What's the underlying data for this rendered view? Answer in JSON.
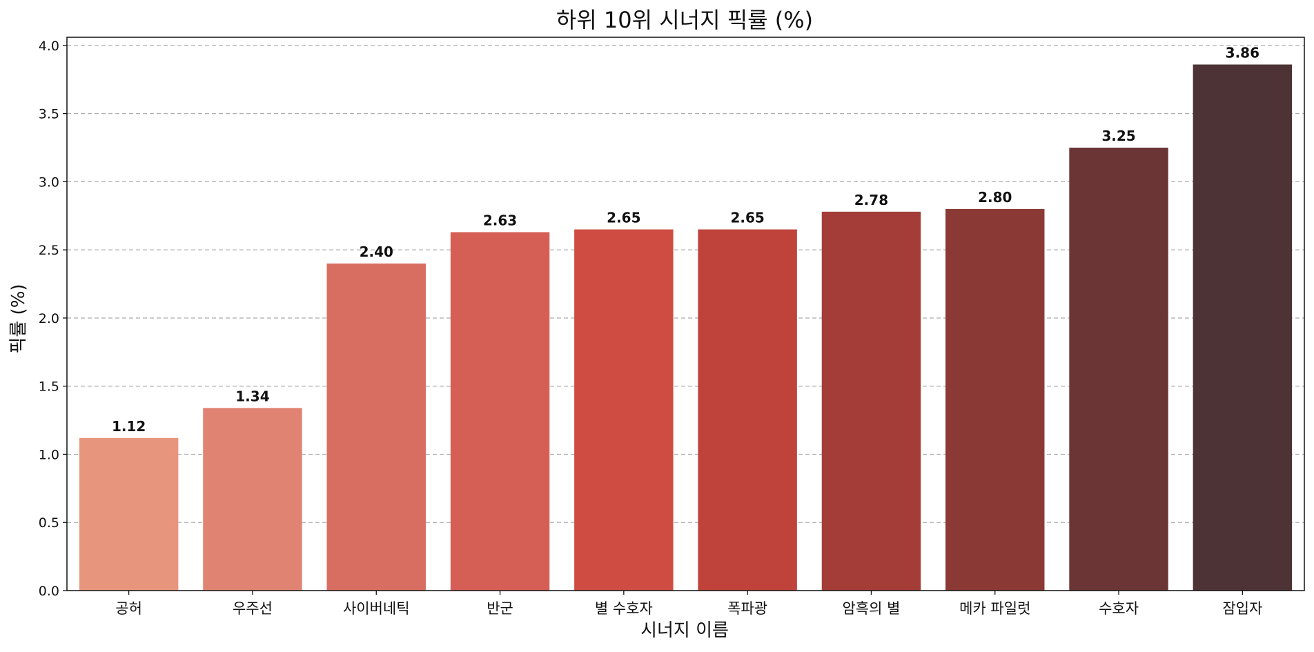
{
  "chart_data": {
    "type": "bar",
    "title": "하위 10위 시너지 픽률 (%)",
    "xlabel": "시너지 이름",
    "ylabel": "픽률 (%)",
    "categories": [
      "공허",
      "우주선",
      "사이버네틱",
      "반군",
      "별 수호자",
      "폭파광",
      "암흑의 별",
      "메카 파일럿",
      "수호자",
      "잠입자"
    ],
    "values": [
      1.12,
      1.34,
      2.4,
      2.63,
      2.65,
      2.65,
      2.78,
      2.8,
      3.25,
      3.86
    ],
    "value_labels": [
      "1.12",
      "1.34",
      "2.40",
      "2.63",
      "2.65",
      "2.65",
      "2.78",
      "2.80",
      "3.25",
      "3.86"
    ],
    "colors": [
      "#e8957e",
      "#e08372",
      "#d86e61",
      "#d55f55",
      "#ce4c42",
      "#c0433b",
      "#a43c38",
      "#8a3935",
      "#6b3535",
      "#4d3335"
    ],
    "ylim": [
      0,
      4.06
    ],
    "yticks": [
      "0.0",
      "0.5",
      "1.0",
      "1.5",
      "2.0",
      "2.5",
      "3.0",
      "3.5",
      "4.0"
    ],
    "grid": true
  }
}
